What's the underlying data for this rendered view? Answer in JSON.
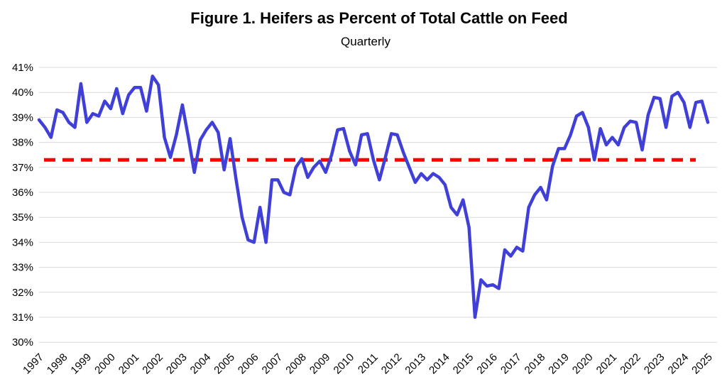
{
  "title": "Figure 1. Heifers as Percent of Total Cattle on Feed",
  "subtitle": "Quarterly",
  "colors": {
    "line": "#4040D9",
    "reference_line": "#FF0000",
    "grid": "#D9D9D9",
    "text": "#000000",
    "background": "#FFFFFF"
  },
  "chart_data": {
    "type": "line",
    "title": "Figure 1. Heifers as Percent of Total Cattle on Feed",
    "subtitle": "Quarterly",
    "xlabel": "",
    "ylabel": "",
    "frequency": "quarterly",
    "x_start": "1997 Q1",
    "x_end": "2025 Q1",
    "ylim": [
      30,
      41
    ],
    "grid": "horizontal",
    "legend": "none",
    "y_tick_labels": [
      "41%",
      "40%",
      "39%",
      "38%",
      "37%",
      "36%",
      "35%",
      "34%",
      "33%",
      "32%",
      "31%",
      "30%"
    ],
    "x_tick_labels": [
      "1997",
      "1998",
      "1999",
      "2000",
      "2001",
      "2002",
      "2003",
      "2004",
      "2005",
      "2006",
      "2007",
      "2008",
      "2009",
      "2010",
      "2011",
      "2012",
      "2013",
      "2014",
      "2015",
      "2016",
      "2017",
      "2018",
      "2019",
      "2020",
      "2021",
      "2022",
      "2023",
      "2024",
      "2025"
    ],
    "reference_line": {
      "value": 37.3,
      "style": "dashed",
      "color": "#FF0000"
    },
    "series": [
      {
        "name": "Heifers as percent of total cattle on feed",
        "color": "#4040D9",
        "values": [
          38.9,
          38.6,
          38.2,
          39.3,
          39.2,
          38.8,
          38.6,
          40.35,
          38.8,
          39.15,
          39.05,
          39.65,
          39.35,
          40.15,
          39.15,
          39.9,
          40.2,
          40.2,
          39.25,
          40.65,
          40.3,
          38.2,
          37.4,
          38.3,
          39.5,
          38.2,
          36.8,
          38.1,
          38.5,
          38.8,
          38.4,
          36.9,
          38.15,
          36.5,
          35.0,
          34.1,
          34.0,
          35.4,
          34.0,
          36.5,
          36.5,
          36.0,
          35.9,
          37.0,
          37.35,
          36.6,
          37.0,
          37.25,
          36.8,
          37.5,
          38.5,
          38.55,
          37.65,
          37.1,
          38.3,
          38.35,
          37.3,
          36.5,
          37.4,
          38.35,
          38.3,
          37.6,
          37.0,
          36.4,
          36.75,
          36.5,
          36.75,
          36.6,
          36.3,
          35.4,
          35.1,
          35.7,
          34.6,
          31.0,
          32.5,
          32.25,
          32.3,
          32.15,
          33.7,
          33.45,
          33.8,
          33.65,
          35.4,
          35.9,
          36.2,
          35.7,
          37.05,
          37.75,
          37.75,
          38.3,
          39.05,
          39.2,
          38.6,
          37.3,
          38.55,
          37.9,
          38.2,
          37.9,
          38.6,
          38.85,
          38.8,
          37.7,
          39.1,
          39.8,
          39.75,
          38.6,
          39.85,
          40.0,
          39.6,
          38.6,
          39.6,
          39.65,
          38.8
        ]
      }
    ]
  }
}
